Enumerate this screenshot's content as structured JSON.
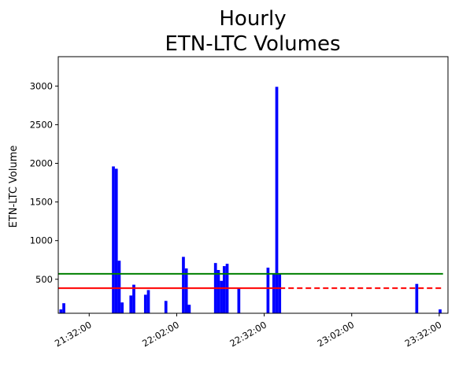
{
  "chart_data": {
    "type": "bar",
    "title_lines": [
      "Hourly",
      "ETN-LTC Volumes"
    ],
    "ylabel": "ETN-LTC Volume",
    "xlabel": "",
    "x_unit": "minutes since 21:00:00 (time of day)",
    "xlim": [
      21.4,
      23.4
    ],
    "ylim": [
      60,
      3380
    ],
    "yticks": [
      500,
      1000,
      1500,
      2000,
      2500,
      3000
    ],
    "xtick_values": [
      32,
      62,
      92,
      122,
      152
    ],
    "xtick_labels": [
      "21:32:00",
      "22:02:00",
      "22:32:00",
      "23:02:00",
      "23:32:00"
    ],
    "bar_color": "#0000ff",
    "points": [
      {
        "x": 22.3,
        "y": 110
      },
      {
        "x": 23.3,
        "y": 190
      },
      {
        "x": 40.3,
        "y": 1960
      },
      {
        "x": 41.3,
        "y": 1930
      },
      {
        "x": 42.3,
        "y": 740
      },
      {
        "x": 43.3,
        "y": 200
      },
      {
        "x": 46.3,
        "y": 290
      },
      {
        "x": 47.3,
        "y": 430
      },
      {
        "x": 51.3,
        "y": 300
      },
      {
        "x": 52.3,
        "y": 360
      },
      {
        "x": 58.3,
        "y": 220
      },
      {
        "x": 64.3,
        "y": 790
      },
      {
        "x": 65.3,
        "y": 640
      },
      {
        "x": 66.3,
        "y": 170
      },
      {
        "x": 75.3,
        "y": 710
      },
      {
        "x": 76.3,
        "y": 620
      },
      {
        "x": 77.3,
        "y": 480
      },
      {
        "x": 78.3,
        "y": 670
      },
      {
        "x": 79.3,
        "y": 700
      },
      {
        "x": 83.3,
        "y": 380
      },
      {
        "x": 93.3,
        "y": 650
      },
      {
        "x": 95.3,
        "y": 570
      },
      {
        "x": 96.3,
        "y": 2990
      },
      {
        "x": 97.3,
        "y": 570
      },
      {
        "x": 144.3,
        "y": 440
      },
      {
        "x": 152.3,
        "y": 110
      }
    ],
    "reference_lines": [
      {
        "y": 570,
        "color": "#008000",
        "style": "solid",
        "x_from": 21.4,
        "x_to": 153.3
      },
      {
        "y": 385,
        "color": "#ff0000",
        "style": "solid",
        "x_from": 21.4,
        "x_to": 97.3
      },
      {
        "y": 385,
        "color": "#ff0000",
        "style": "dashed",
        "x_from": 97.3,
        "x_to": 153.3
      }
    ]
  }
}
